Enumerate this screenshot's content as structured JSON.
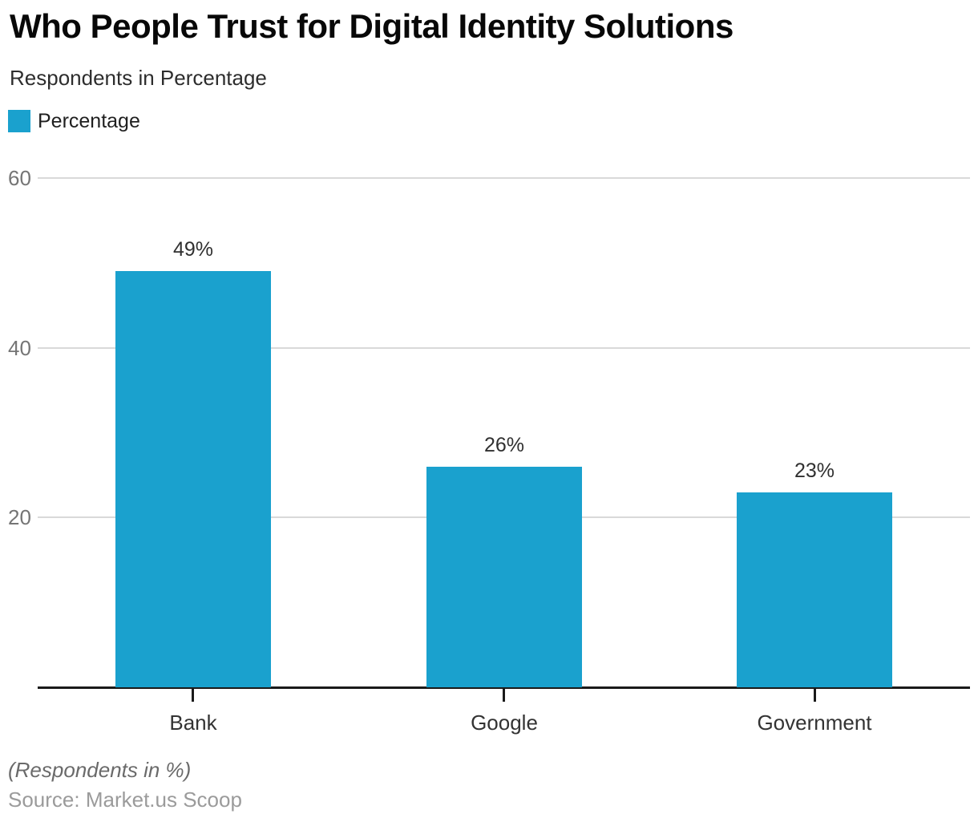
{
  "header": {
    "title": "Who People Trust for Digital Identity Solutions",
    "subtitle": "Respondents in Percentage"
  },
  "legend": {
    "label": "Percentage"
  },
  "chart_data": {
    "type": "bar",
    "title": "Who People Trust for Digital Identity Solutions",
    "subtitle": "Respondents in Percentage",
    "categories": [
      "Bank",
      "Google",
      "Government"
    ],
    "series": [
      {
        "name": "Percentage",
        "values": [
          49,
          26,
          23
        ]
      }
    ],
    "value_labels": [
      "49%",
      "26%",
      "23%"
    ],
    "xlabel": "",
    "ylabel": "",
    "ylim": [
      0,
      60
    ],
    "yticks": [
      20,
      40,
      60
    ],
    "grid": "horizontal-only",
    "legend_position": "top-left",
    "bar_color": "#1AA1CE"
  },
  "footer": {
    "note": "(Respondents in %)",
    "source": "Source: Market.us Scoop"
  },
  "colors": {
    "bar": "#1AA1CE",
    "gridline": "#d9d9d9",
    "axis": "#1a1a1a",
    "ytick_label": "#757575",
    "value_label": "#303030",
    "category_label": "#333333"
  }
}
